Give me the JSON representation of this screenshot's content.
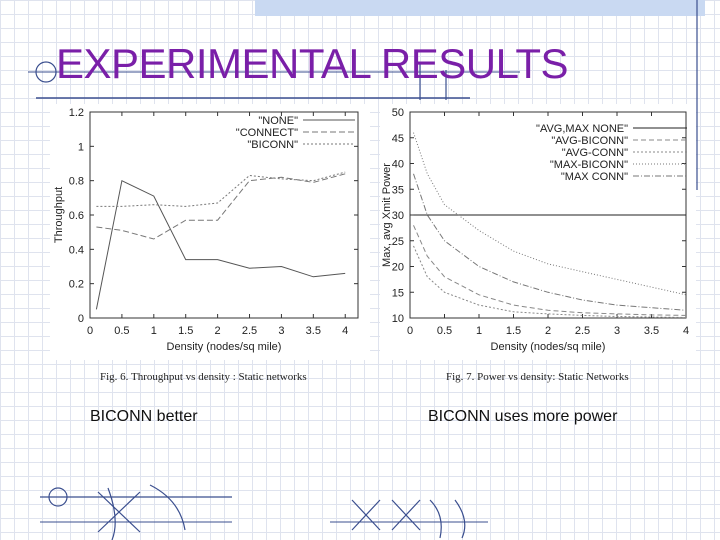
{
  "slide": {
    "title": "EXPERIMENTAL RESULTS",
    "captions": [
      "Fig. 6.   Throughput vs density : Static networks",
      "Fig. 7.   Power vs density: Static Networks"
    ],
    "bullets": [
      "BICONN better",
      "BICONN uses more power"
    ],
    "colors": {
      "title": "#7a1fa8",
      "decor": "#3b4f8f"
    }
  },
  "chart_data": [
    {
      "type": "line",
      "xlabel": "Density (nodes/sq mile)",
      "ylabel": "Throughput",
      "xlim": [
        0,
        4.2
      ],
      "ylim": [
        0,
        1.2
      ],
      "x_ticks": [
        "0",
        "0.5",
        "1",
        "1.5",
        "2",
        "2.5",
        "3",
        "3.5",
        "4"
      ],
      "x_tick_values": [
        0,
        0.5,
        1,
        1.5,
        2,
        2.5,
        3,
        3.5,
        4
      ],
      "y_ticks": [
        "0",
        "0.2",
        "0.4",
        "0.6",
        "0.8",
        "1",
        "1.2"
      ],
      "y_tick_values": [
        0,
        0.2,
        0.4,
        0.6,
        0.8,
        1,
        1.2
      ],
      "legend_position": "top-right",
      "x": [
        0.1,
        0.5,
        1,
        1.5,
        2,
        2.5,
        3,
        3.5,
        4
      ],
      "series": [
        {
          "name": "\"NONE\"",
          "values": [
            0.05,
            0.8,
            0.71,
            0.34,
            0.34,
            0.29,
            0.3,
            0.24,
            0.26
          ],
          "dash": "",
          "color": "#555555"
        },
        {
          "name": "\"CONNECT\"",
          "values": [
            0.53,
            0.51,
            0.46,
            0.57,
            0.57,
            0.8,
            0.82,
            0.79,
            0.84
          ],
          "dash": "6,3",
          "color": "#777777"
        },
        {
          "name": "\"BICONN\"",
          "values": [
            0.65,
            0.65,
            0.66,
            0.65,
            0.67,
            0.83,
            0.81,
            0.8,
            0.85
          ],
          "dash": "2,2",
          "color": "#777777"
        }
      ]
    },
    {
      "type": "line",
      "xlabel": "Density (nodes/sq mile)",
      "ylabel": "Max, avg Xmit Power",
      "xlim": [
        0,
        4
      ],
      "ylim": [
        10,
        50
      ],
      "x_ticks": [
        "0",
        "0.5",
        "1",
        "1.5",
        "2",
        "2.5",
        "3",
        "3.5",
        "4"
      ],
      "x_tick_values": [
        0,
        0.5,
        1,
        1.5,
        2,
        2.5,
        3,
        3.5,
        4
      ],
      "y_ticks": [
        "10",
        "15",
        "20",
        "25",
        "30",
        "35",
        "40",
        "45",
        "50"
      ],
      "y_tick_values": [
        10,
        15,
        20,
        25,
        30,
        35,
        40,
        45,
        50
      ],
      "legend_position": "top-right",
      "x": [
        0.05,
        0.25,
        0.5,
        1,
        1.5,
        2,
        2.5,
        3,
        3.5,
        4
      ],
      "series": [
        {
          "name": "\"AVG,MAX NONE\"",
          "values": [
            30,
            30,
            30,
            30,
            30,
            30,
            30,
            30,
            30,
            30
          ],
          "dash": "",
          "color": "#222222"
        },
        {
          "name": "\"AVG-BICONN\"",
          "values": [
            28,
            22,
            18,
            14.5,
            12.5,
            11.5,
            11,
            10.8,
            10.6,
            10.5
          ],
          "dash": "5,3",
          "color": "#888888"
        },
        {
          "name": "\"AVG-CONN\"",
          "values": [
            24,
            18,
            15,
            12.5,
            11.2,
            10.8,
            10.5,
            10.3,
            10.2,
            10.1
          ],
          "dash": "2,2",
          "color": "#888888"
        },
        {
          "name": "\"MAX-BICONN\"",
          "values": [
            46,
            38,
            32,
            27,
            23,
            20.5,
            19,
            17.5,
            16,
            14.5
          ],
          "dash": "1,2",
          "color": "#777777"
        },
        {
          "name": "\"MAX CONN\"",
          "values": [
            38,
            30,
            25,
            20,
            17,
            15,
            13.5,
            12.5,
            12,
            11.5
          ],
          "dash": "6,2,1,2",
          "color": "#777777"
        }
      ]
    }
  ]
}
